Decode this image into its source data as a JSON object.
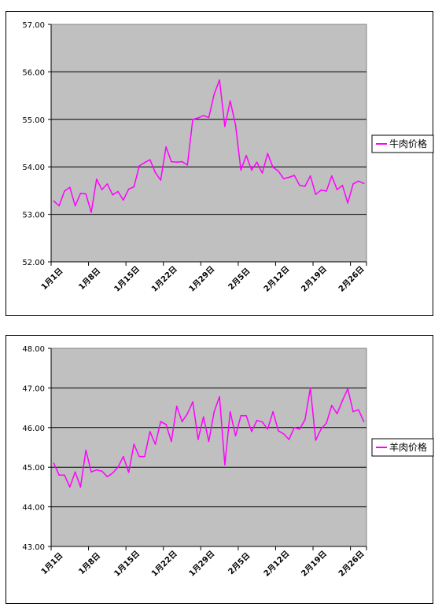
{
  "chart_data": [
    {
      "type": "line",
      "ylim": [
        52,
        57
      ],
      "yticks": [
        "52.00",
        "53.00",
        "54.00",
        "55.00",
        "56.00",
        "57.00"
      ],
      "xtick_labels": [
        "1月1日",
        "1月8日",
        "1月15日",
        "1月22日",
        "1月29日",
        "2月5日",
        "2月12日",
        "2月19日",
        "2月26日"
      ],
      "grid": true,
      "legend_position": "right",
      "line_color": "#ff00ff",
      "plot_bg": "#c0c0c0",
      "series": [
        {
          "name": "牛肉价格",
          "values": [
            53.28,
            53.18,
            53.49,
            53.57,
            53.18,
            53.44,
            53.43,
            53.04,
            53.74,
            53.52,
            53.64,
            53.41,
            53.48,
            53.3,
            53.53,
            53.58,
            54.02,
            54.09,
            54.15,
            53.88,
            53.72,
            54.42,
            54.11,
            54.1,
            54.11,
            54.04,
            55.0,
            55.03,
            55.08,
            55.04,
            55.53,
            55.83,
            54.85,
            55.39,
            54.88,
            53.93,
            54.24,
            53.93,
            54.1,
            53.87,
            54.28,
            53.99,
            53.91,
            53.75,
            53.78,
            53.82,
            53.61,
            53.59,
            53.81,
            53.42,
            53.51,
            53.49,
            53.81,
            53.52,
            53.61,
            53.24,
            53.64,
            53.7,
            53.65
          ]
        }
      ]
    },
    {
      "type": "line",
      "ylim": [
        43,
        48
      ],
      "yticks": [
        "43.00",
        "44.00",
        "45.00",
        "46.00",
        "47.00",
        "48.00"
      ],
      "xtick_labels": [
        "1月1日",
        "1月8日",
        "1月15日",
        "1月22日",
        "1月29日",
        "2月5日",
        "2月12日",
        "2月19日",
        "2月26日"
      ],
      "grid": true,
      "legend_position": "right",
      "line_color": "#ff00ff",
      "plot_bg": "#c0c0c0",
      "series": [
        {
          "name": "羊肉价格",
          "values": [
            45.1,
            44.8,
            44.8,
            44.5,
            44.88,
            44.5,
            45.43,
            44.88,
            44.93,
            44.9,
            44.76,
            44.85,
            45.0,
            45.27,
            44.87,
            45.58,
            45.27,
            45.27,
            45.9,
            45.58,
            46.15,
            46.08,
            45.65,
            46.54,
            46.15,
            46.35,
            46.65,
            45.7,
            46.27,
            45.65,
            46.4,
            46.78,
            45.06,
            46.4,
            45.79,
            46.3,
            46.3,
            45.9,
            46.18,
            46.14,
            45.96,
            46.4,
            45.92,
            45.84,
            45.7,
            46.0,
            45.96,
            46.2,
            47.0,
            45.68,
            45.96,
            46.11,
            46.56,
            46.35,
            46.68,
            46.98,
            46.4,
            46.45,
            46.15
          ]
        }
      ]
    }
  ]
}
